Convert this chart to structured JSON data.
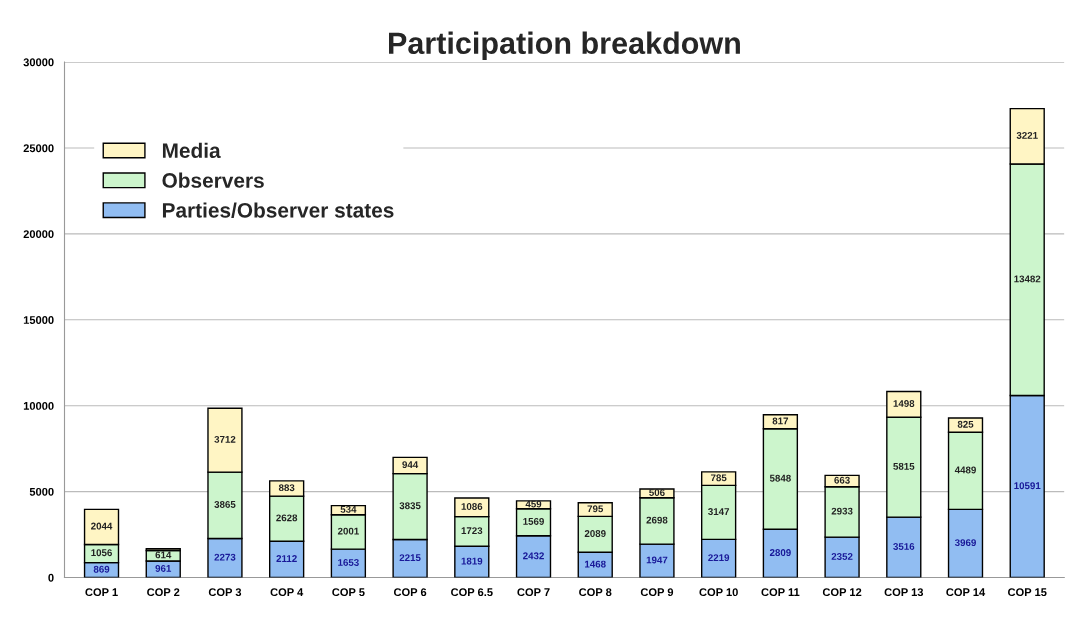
{
  "chart_data": {
    "type": "bar",
    "title": "Participation breakdown",
    "stacked": true,
    "categories": [
      "COP 1",
      "COP 2",
      "COP 3",
      "COP 4",
      "COP 5",
      "COP 6",
      "COP 6.5",
      "COP 7",
      "COP 8",
      "COP 9",
      "COP 10",
      "COP 11",
      "COP 12",
      "COP 13",
      "COP 14",
      "COP 15"
    ],
    "series": [
      {
        "name": "Parties/Observer states",
        "color": "#91bdf2",
        "values": [
          869,
          961,
          2273,
          2112,
          1653,
          2215,
          1819,
          2432,
          1468,
          1947,
          2219,
          2809,
          2352,
          3516,
          3969,
          10591
        ],
        "value_labels": [
          "869",
          "961",
          "2273",
          "2112",
          "1653",
          "2215",
          "1819",
          "2432",
          "1468",
          "1947",
          "2219",
          "2809",
          "2352",
          "3516",
          "3969",
          "10591"
        ]
      },
      {
        "name": "Observers",
        "color": "#ccf5cc",
        "values": [
          1056,
          614,
          3865,
          2628,
          2001,
          3835,
          1723,
          1569,
          2089,
          2698,
          3147,
          5848,
          2933,
          5815,
          4489,
          13482
        ],
        "value_labels": [
          "1056",
          "614",
          "3865",
          "2628",
          "2001",
          "3835",
          "1723",
          "1569",
          "2089",
          "2698",
          "3147",
          "5848",
          "2933",
          "5815",
          "4489",
          "13482"
        ]
      },
      {
        "name": "Media",
        "color": "#fff5c4",
        "values": [
          2044,
          100,
          3712,
          883,
          534,
          944,
          1086,
          459,
          795,
          506,
          785,
          817,
          663,
          1498,
          825,
          3221
        ],
        "value_labels": [
          "2044",
          null,
          "3712",
          "883",
          "534",
          "944",
          "1086",
          "459",
          "795",
          "506",
          "785",
          "817",
          "663",
          "1498",
          "825",
          "3221"
        ]
      }
    ],
    "ylim": [
      0,
      30000
    ],
    "yticks": [
      0,
      5000,
      10000,
      15000,
      20000,
      25000,
      30000
    ],
    "grid": "y",
    "legend": "top left"
  }
}
